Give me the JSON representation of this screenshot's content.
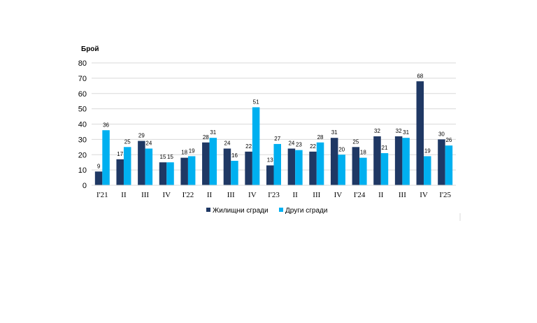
{
  "chart_data": {
    "type": "bar",
    "ylabel": "Брой",
    "ylim": [
      0,
      80
    ],
    "yticks": [
      0,
      10,
      20,
      30,
      40,
      50,
      60,
      70,
      80
    ],
    "grid": true,
    "legend_position": "bottom",
    "categories": [
      "I'21",
      "II",
      "III",
      "IV",
      "I'22",
      "II",
      "III",
      "IV",
      "I'23",
      "II",
      "III",
      "IV",
      "I'24",
      "II",
      "III",
      "IV",
      "I'25"
    ],
    "series": [
      {
        "name": "Жилищни сгради",
        "color": "#1f3864",
        "values": [
          9,
          17,
          29,
          15,
          18,
          28,
          24,
          22,
          13,
          24,
          22,
          31,
          25,
          32,
          32,
          68,
          30
        ]
      },
      {
        "name": "Други сгради",
        "color": "#00b0f0",
        "values": [
          36,
          25,
          24,
          15,
          19,
          31,
          16,
          51,
          27,
          23,
          28,
          20,
          18,
          21,
          31,
          19,
          26
        ]
      }
    ]
  }
}
